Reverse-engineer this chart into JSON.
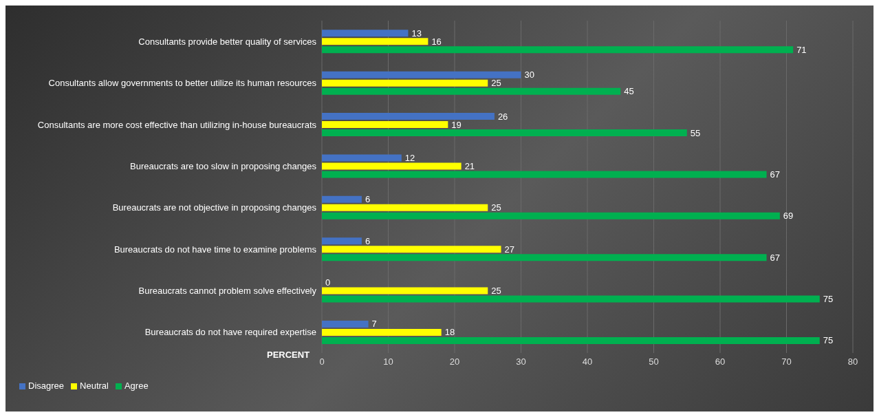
{
  "chart_data": {
    "type": "bar",
    "orientation": "horizontal",
    "xlabel": "PERCENT",
    "categories": [
      "Consultants provide better quality of services",
      "Consultants allow governments to better utilize its human resources",
      "Consultants are more cost effective than utilizing in-house bureaucrats",
      "Bureaucrats are too slow in proposing changes",
      "Bureaucrats are not objective in proposing changes",
      "Bureaucrats do not have time to examine problems",
      "Bureaucrats cannot problem solve effectively",
      "Bureaucrats do not have required expertise"
    ],
    "series": [
      {
        "name": "Disagree",
        "color": "#4472c4",
        "values": [
          13,
          30,
          26,
          12,
          6,
          6,
          0,
          7
        ]
      },
      {
        "name": "Neutral",
        "color": "#ffff00",
        "values": [
          16,
          25,
          19,
          21,
          25,
          27,
          25,
          18
        ]
      },
      {
        "name": "Agree",
        "color": "#00b050",
        "values": [
          71,
          45,
          55,
          67,
          69,
          67,
          75,
          75
        ]
      }
    ],
    "xlim": [
      0,
      80
    ],
    "xticks": [
      0,
      10,
      20,
      30,
      40,
      50,
      60,
      70,
      80
    ],
    "grid": "x",
    "legend": "bottom left",
    "data_labels": true
  }
}
